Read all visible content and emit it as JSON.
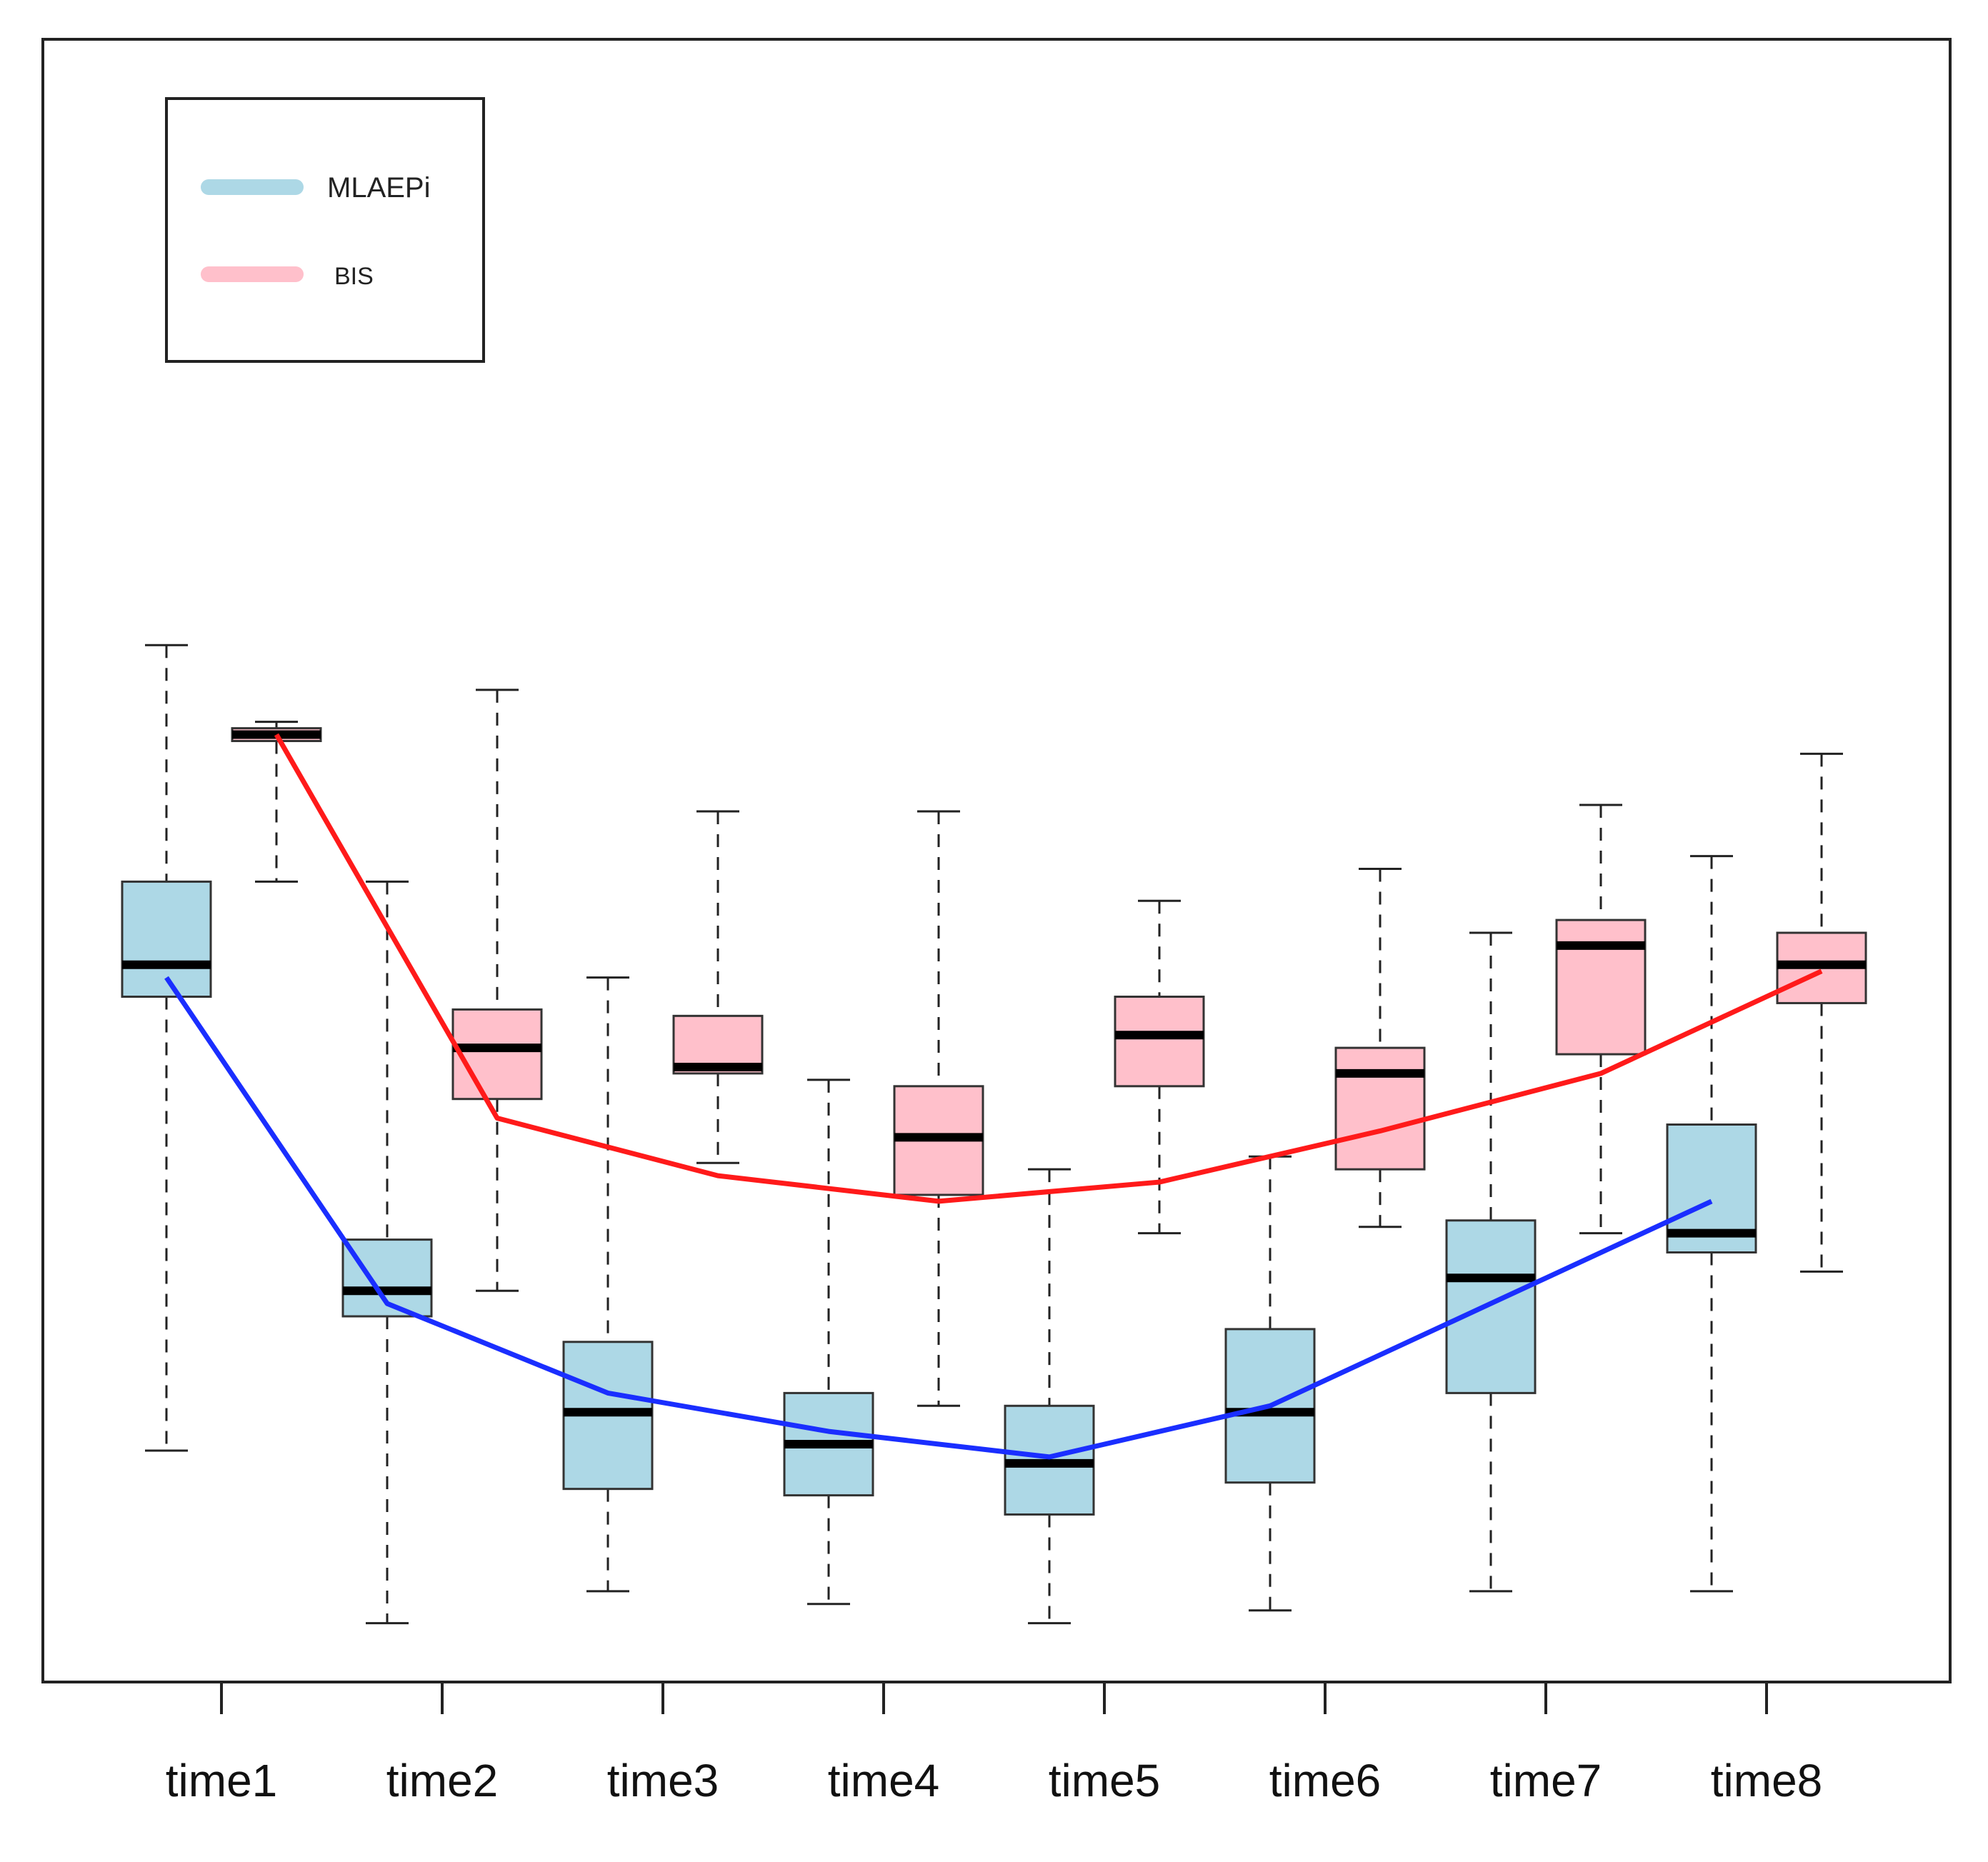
{
  "chart_data": {
    "type": "box",
    "title": "",
    "xlabel": "",
    "ylabel": "",
    "categories": [
      "time1",
      "time2",
      "time3",
      "time4",
      "time5",
      "time6",
      "time7",
      "time8"
    ],
    "ylim": [
      0,
      100
    ],
    "grid": false,
    "legend_position": "top-left",
    "series": [
      {
        "name": "MLAEPi",
        "fill": "#add8e6",
        "line_color": "#1a2eff",
        "boxes": [
          {
            "min": 19.5,
            "q1": 55.0,
            "median": 57.5,
            "q3": 64.0,
            "max": 82.5
          },
          {
            "min": 6.0,
            "q1": 30.0,
            "median": 32.0,
            "q3": 36.0,
            "max": 64.0
          },
          {
            "min": 8.5,
            "q1": 16.5,
            "median": 22.5,
            "q3": 28.0,
            "max": 56.5
          },
          {
            "min": 7.5,
            "q1": 16.0,
            "median": 20.0,
            "q3": 24.0,
            "max": 48.5
          },
          {
            "min": 6.0,
            "q1": 14.5,
            "median": 18.5,
            "q3": 23.0,
            "max": 41.5
          },
          {
            "min": 7.0,
            "q1": 17.0,
            "median": 22.5,
            "q3": 29.0,
            "max": 42.5
          },
          {
            "min": 8.5,
            "q1": 24.0,
            "median": 33.0,
            "q3": 37.5,
            "max": 60.0
          },
          {
            "min": 8.5,
            "q1": 35.0,
            "median": 36.5,
            "q3": 45.0,
            "max": 66.0
          }
        ],
        "trend": [
          56.5,
          31.0,
          24.0,
          21.0,
          19.0,
          23.0,
          31.0,
          39.0
        ]
      },
      {
        "name": "BIS",
        "fill": "#ffc0cb",
        "line_color": "#ff1a1a",
        "boxes": [
          {
            "min": 64.0,
            "q1": 75.0,
            "median": 75.5,
            "q3": 76.0,
            "max": 76.5
          },
          {
            "min": 32.0,
            "q1": 47.0,
            "median": 51.0,
            "q3": 54.0,
            "max": 79.0
          },
          {
            "min": 42.0,
            "q1": 49.0,
            "median": 49.5,
            "q3": 53.5,
            "max": 69.5
          },
          {
            "min": 23.0,
            "q1": 39.5,
            "median": 44.0,
            "q3": 48.0,
            "max": 69.5
          },
          {
            "min": 36.5,
            "q1": 48.0,
            "median": 52.0,
            "q3": 55.0,
            "max": 62.5
          },
          {
            "min": 37.0,
            "q1": 41.5,
            "median": 49.0,
            "q3": 51.0,
            "max": 65.0
          },
          {
            "min": 36.5,
            "q1": 50.5,
            "median": 59.0,
            "q3": 61.0,
            "max": 70.0
          },
          {
            "min": 33.5,
            "q1": 54.5,
            "median": 57.5,
            "q3": 60.0,
            "max": 74.0
          }
        ],
        "trend": [
          75.5,
          45.5,
          41.0,
          39.0,
          40.5,
          44.5,
          49.0,
          57.0
        ]
      }
    ]
  }
}
